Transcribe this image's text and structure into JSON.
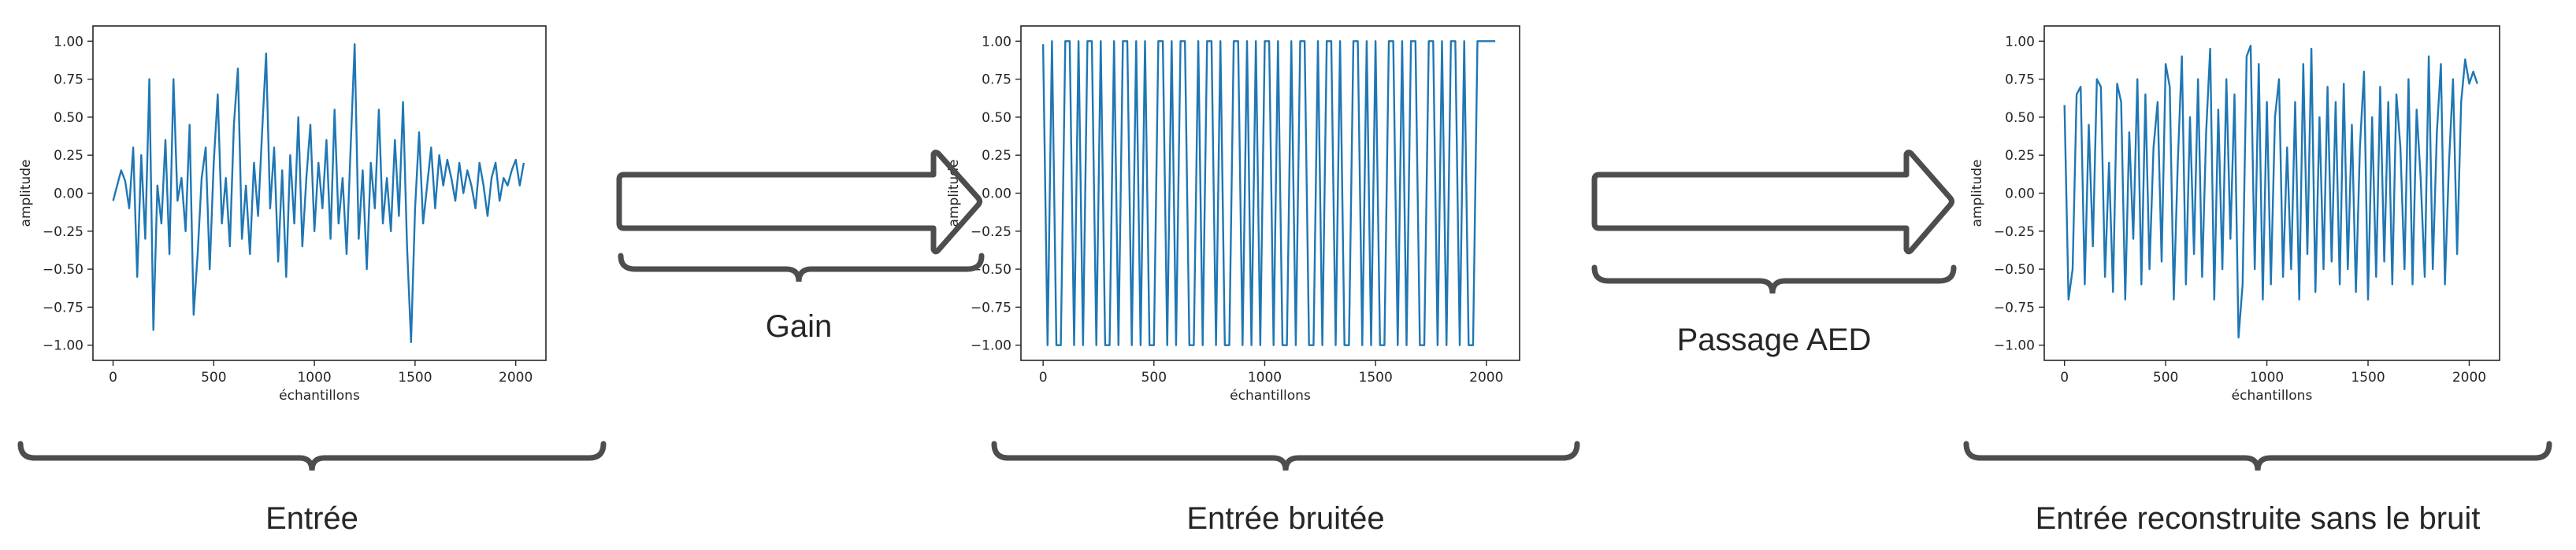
{
  "captions": {
    "input": "Entrée",
    "noisy": "Entrée bruitée",
    "reconstructed": "Entrée reconstruite sans le bruit",
    "gain": "Gain",
    "dae": "Passage AED"
  },
  "colors": {
    "line": "#1f77b4",
    "arrow": "#4d4d4d",
    "axes": "#262626"
  },
  "chart_data": [
    {
      "type": "line",
      "title": "",
      "xlabel": "échantillons",
      "ylabel": "amplitude",
      "xlim": [
        -100,
        2150
      ],
      "ylim": [
        -1.1,
        1.1
      ],
      "xticks": [
        "0",
        "500",
        "1000",
        "1500",
        "2000"
      ],
      "yticks": [
        "−1.00",
        "−0.75",
        "−0.50",
        "−0.25",
        "0.00",
        "0.25",
        "0.50",
        "0.75",
        "1.00"
      ],
      "series": [
        {
          "x": [
            0,
            20,
            40,
            60,
            80,
            100,
            120,
            140,
            160,
            180,
            200,
            220,
            240,
            260,
            280,
            300,
            320,
            340,
            360,
            380,
            400,
            420,
            440,
            460,
            480,
            500,
            520,
            540,
            560,
            580,
            600,
            620,
            640,
            660,
            680,
            700,
            720,
            740,
            760,
            780,
            800,
            820,
            840,
            860,
            880,
            900,
            920,
            940,
            960,
            980,
            1000,
            1020,
            1040,
            1060,
            1080,
            1100,
            1120,
            1140,
            1160,
            1180,
            1200,
            1220,
            1240,
            1260,
            1280,
            1300,
            1320,
            1340,
            1360,
            1380,
            1400,
            1420,
            1440,
            1460,
            1480,
            1500,
            1520,
            1540,
            1560,
            1580,
            1600,
            1620,
            1640,
            1660,
            1680,
            1700,
            1720,
            1740,
            1760,
            1780,
            1800,
            1820,
            1840,
            1860,
            1880,
            1900,
            1920,
            1940,
            1960,
            1980,
            2000,
            2020,
            2040
          ],
          "y": [
            -0.05,
            0.05,
            0.15,
            0.08,
            -0.1,
            0.3,
            -0.55,
            0.25,
            -0.3,
            0.75,
            -0.9,
            0.05,
            -0.2,
            0.35,
            -0.4,
            0.75,
            -0.05,
            0.1,
            -0.25,
            0.45,
            -0.8,
            -0.4,
            0.1,
            0.3,
            -0.5,
            0.2,
            0.65,
            -0.2,
            0.1,
            -0.35,
            0.45,
            0.82,
            -0.3,
            0.05,
            -0.4,
            0.2,
            -0.15,
            0.4,
            0.92,
            -0.1,
            0.3,
            -0.45,
            0.15,
            -0.55,
            0.25,
            -0.2,
            0.5,
            -0.35,
            0.1,
            0.45,
            -0.25,
            0.2,
            -0.1,
            0.35,
            -0.3,
            0.55,
            -0.2,
            0.1,
            -0.4,
            0.3,
            0.98,
            -0.3,
            0.15,
            -0.5,
            0.2,
            -0.1,
            0.55,
            -0.2,
            0.1,
            -0.25,
            0.35,
            -0.15,
            0.6,
            -0.35,
            -0.98,
            -0.1,
            0.4,
            -0.2,
            0.05,
            0.3,
            -0.1,
            0.25,
            0.05,
            0.22,
            0.1,
            -0.05,
            0.2,
            0,
            0.15,
            0.05,
            -0.1,
            0.2,
            0.05,
            -0.15,
            0.1,
            0.2,
            -0.05,
            0.1,
            0.05,
            0.15,
            0.22,
            0.05,
            0.2
          ]
        }
      ]
    },
    {
      "type": "line",
      "title": "",
      "xlabel": "échantillons",
      "ylabel": "amplitude",
      "xlim": [
        -100,
        2150
      ],
      "ylim": [
        -1.1,
        1.1
      ],
      "xticks": [
        "0",
        "500",
        "1000",
        "1500",
        "2000"
      ],
      "yticks": [
        "−1.00",
        "−0.75",
        "−0.50",
        "−0.25",
        "0.00",
        "0.25",
        "0.50",
        "0.75",
        "1.00"
      ],
      "series": [
        {
          "x": [
            0,
            20,
            40,
            60,
            80,
            100,
            120,
            140,
            160,
            180,
            200,
            220,
            240,
            260,
            280,
            300,
            320,
            340,
            360,
            380,
            400,
            420,
            440,
            460,
            480,
            500,
            520,
            540,
            560,
            580,
            600,
            620,
            640,
            660,
            680,
            700,
            720,
            740,
            760,
            780,
            800,
            820,
            840,
            860,
            880,
            900,
            920,
            940,
            960,
            980,
            1000,
            1020,
            1040,
            1060,
            1080,
            1100,
            1120,
            1140,
            1160,
            1180,
            1200,
            1220,
            1240,
            1260,
            1280,
            1300,
            1320,
            1340,
            1360,
            1380,
            1400,
            1420,
            1440,
            1460,
            1480,
            1500,
            1520,
            1540,
            1560,
            1580,
            1600,
            1620,
            1640,
            1660,
            1680,
            1700,
            1720,
            1740,
            1760,
            1780,
            1800,
            1820,
            1840,
            1860,
            1880,
            1900,
            1920,
            1940,
            1960,
            1980,
            2000,
            2020,
            2040
          ],
          "y": [
            0.98,
            -1,
            1,
            -1,
            -1,
            1,
            1,
            -1,
            1,
            -1,
            1,
            1,
            -1,
            1,
            -1,
            -1,
            1,
            -1,
            1,
            1,
            -1,
            1,
            -1,
            1,
            -1,
            -1,
            1,
            1,
            -1,
            1,
            -1,
            1,
            1,
            -1,
            -1,
            1,
            -1,
            1,
            1,
            -1,
            1,
            -1,
            -1,
            1,
            1,
            -1,
            1,
            -1,
            1,
            -1,
            1,
            1,
            -1,
            1,
            -1,
            -1,
            1,
            -1,
            1,
            1,
            -1,
            -1,
            1,
            -1,
            1,
            1,
            -1,
            1,
            -1,
            -1,
            1,
            1,
            -1,
            1,
            -1,
            1,
            -1,
            -1,
            1,
            1,
            -1,
            1,
            -1,
            1,
            1,
            -1,
            -1,
            1,
            1,
            -1,
            1,
            -1,
            1,
            1,
            -1,
            1,
            -1,
            -1,
            1,
            1,
            1,
            1,
            1
          ]
        }
      ]
    },
    {
      "type": "line",
      "title": "",
      "xlabel": "échantillons",
      "ylabel": "amplitude",
      "xlim": [
        -100,
        2150
      ],
      "ylim": [
        -1.1,
        1.1
      ],
      "xticks": [
        "0",
        "500",
        "1000",
        "1500",
        "2000"
      ],
      "yticks": [
        "−1.00",
        "−0.75",
        "−0.50",
        "−0.25",
        "0.00",
        "0.25",
        "0.50",
        "0.75",
        "1.00"
      ],
      "series": [
        {
          "x": [
            0,
            20,
            40,
            60,
            80,
            100,
            120,
            140,
            160,
            180,
            200,
            220,
            240,
            260,
            280,
            300,
            320,
            340,
            360,
            380,
            400,
            420,
            440,
            460,
            480,
            500,
            520,
            540,
            560,
            580,
            600,
            620,
            640,
            660,
            680,
            700,
            720,
            740,
            760,
            780,
            800,
            820,
            840,
            860,
            880,
            900,
            920,
            940,
            960,
            980,
            1000,
            1020,
            1040,
            1060,
            1080,
            1100,
            1120,
            1140,
            1160,
            1180,
            1200,
            1220,
            1240,
            1260,
            1280,
            1300,
            1320,
            1340,
            1360,
            1380,
            1400,
            1420,
            1440,
            1460,
            1480,
            1500,
            1520,
            1540,
            1560,
            1580,
            1600,
            1620,
            1640,
            1660,
            1680,
            1700,
            1720,
            1740,
            1760,
            1780,
            1800,
            1820,
            1840,
            1860,
            1880,
            1900,
            1920,
            1940,
            1960,
            1980,
            2000,
            2020,
            2040
          ],
          "y": [
            0.58,
            -0.7,
            -0.5,
            0.65,
            0.7,
            -0.6,
            0.45,
            -0.35,
            0.75,
            0.7,
            -0.55,
            0.2,
            -0.65,
            0.72,
            0.6,
            -0.7,
            0.4,
            -0.3,
            0.75,
            -0.6,
            0.65,
            -0.5,
            0.3,
            0.6,
            -0.45,
            0.85,
            0.7,
            -0.7,
            0.2,
            0.9,
            -0.6,
            0.5,
            -0.4,
            0.75,
            -0.55,
            0.4,
            0.95,
            -0.7,
            0.55,
            -0.5,
            0.75,
            -0.3,
            0.65,
            -0.95,
            -0.6,
            0.9,
            0.97,
            -0.5,
            0.85,
            -0.7,
            0.6,
            -0.6,
            0.5,
            0.75,
            -0.55,
            0.3,
            -0.5,
            0.6,
            -0.7,
            0.85,
            -0.4,
            0.95,
            -0.65,
            0.5,
            -0.5,
            0.7,
            -0.45,
            0.6,
            -0.6,
            0.72,
            -0.5,
            0.45,
            -0.65,
            0.3,
            0.8,
            -0.7,
            0.5,
            -0.55,
            0.7,
            -0.45,
            0.6,
            -0.6,
            0.65,
            0.3,
            -0.5,
            0.75,
            -0.6,
            0.55,
            0.1,
            -0.55,
            0.9,
            -0.5,
            0.4,
            0.85,
            -0.6,
            0.2,
            0.75,
            -0.4,
            0.6,
            0.88,
            0.72,
            0.8,
            0.72
          ]
        }
      ]
    }
  ]
}
